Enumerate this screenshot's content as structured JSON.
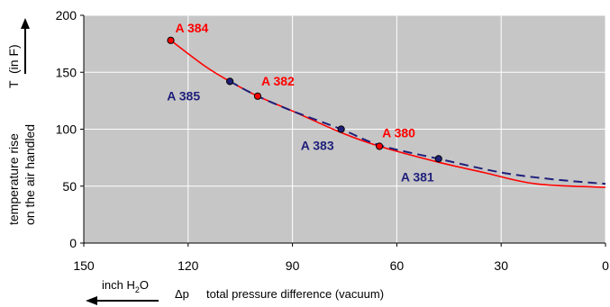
{
  "chart_data": {
    "type": "line",
    "x_axis": {
      "range": [
        150,
        0
      ],
      "ticks": [
        150,
        120,
        90,
        60,
        30,
        0
      ],
      "label_unit": "inch H",
      "label_unit_sub": "2",
      "label_unit_end": "O",
      "label_symbol": "Δp",
      "label_text": "total pressure difference (vacuum)"
    },
    "y_axis": {
      "range": [
        0,
        200
      ],
      "ticks": [
        0,
        50,
        100,
        150,
        200
      ],
      "label_line1": "temperature rise",
      "label_line2": "on the air handled",
      "label_symbol": "T",
      "label_unit": "(in F)"
    },
    "grid": true,
    "series": [
      {
        "color": "#ff0000",
        "style": "solid",
        "curve": [
          [
            125,
            178
          ],
          [
            115,
            155
          ],
          [
            108,
            142
          ],
          [
            100,
            129
          ],
          [
            90,
            116
          ],
          [
            76,
            97
          ],
          [
            65,
            85
          ],
          [
            48,
            71
          ],
          [
            35,
            62
          ],
          [
            20,
            52
          ],
          [
            0,
            49
          ]
        ],
        "points": [
          {
            "label": "A 384",
            "x": 125,
            "y": 178
          },
          {
            "label": "A 382",
            "x": 100,
            "y": 129
          },
          {
            "label": "A 380",
            "x": 65,
            "y": 85
          }
        ]
      },
      {
        "color": "#1f1f7a",
        "style": "dashed",
        "curve": [
          [
            108,
            142
          ],
          [
            100,
            129
          ],
          [
            90,
            116
          ],
          [
            76,
            100
          ],
          [
            65,
            86
          ],
          [
            48,
            74
          ],
          [
            30,
            62
          ],
          [
            15,
            56
          ],
          [
            0,
            52
          ]
        ],
        "points": [
          {
            "label": "A 385",
            "x": 108,
            "y": 142
          },
          {
            "label": "A 383",
            "x": 76,
            "y": 100
          },
          {
            "label": "A 381",
            "x": 48,
            "y": 74
          }
        ]
      }
    ]
  }
}
